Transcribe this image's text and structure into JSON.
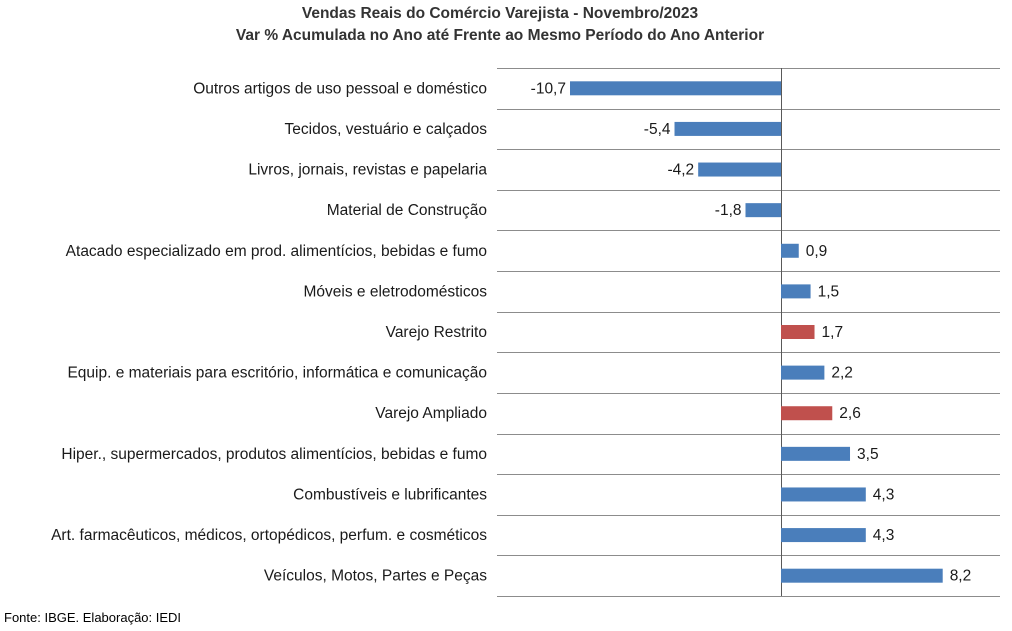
{
  "chart_data": {
    "type": "bar",
    "orientation": "horizontal",
    "title": "Vendas Reais do Comércio Varejista - Novembro/2023",
    "subtitle": "Var % Acumulada no Ano até Frente ao Mesmo Período do Ano Anterior",
    "categories": [
      "Outros artigos de uso pessoal e doméstico",
      "Tecidos, vestuário e calçados",
      "Livros, jornais, revistas e papelaria",
      "Material de Construção",
      "Atacado especializado em prod. alimentícios, bebidas e fumo",
      "Móveis e eletrodomésticos",
      "Varejo Restrito",
      "Equip. e materiais para escritório, informática e comunicação",
      "Varejo Ampliado",
      "Hiper., supermercados, produtos alimentícios, bebidas e fumo",
      "Combustíveis e lubrificantes",
      "Art. farmacêuticos, médicos, ortopédicos, perfum. e cosméticos",
      "Veículos, Motos, Partes e Peças"
    ],
    "values": [
      -10.7,
      -5.4,
      -4.2,
      -1.8,
      0.9,
      1.5,
      1.7,
      2.2,
      2.6,
      3.5,
      4.3,
      4.3,
      8.2
    ],
    "value_labels": [
      "-10,7",
      "-5,4",
      "-4,2",
      "-1,8",
      "0,9",
      "1,5",
      "1,7",
      "2,2",
      "2,6",
      "3,5",
      "4,3",
      "4,3",
      "8,2"
    ],
    "highlighted": [
      "Varejo Restrito",
      "Varejo Ampliado"
    ],
    "colors": {
      "default": "#4a7ebb",
      "highlight": "#c0504d"
    },
    "xlim": [
      -12.0,
      11.5
    ],
    "grid": "horizontal-separators",
    "legend": "none"
  },
  "source": "Fonte: IBGE. Elaboração: IEDI"
}
